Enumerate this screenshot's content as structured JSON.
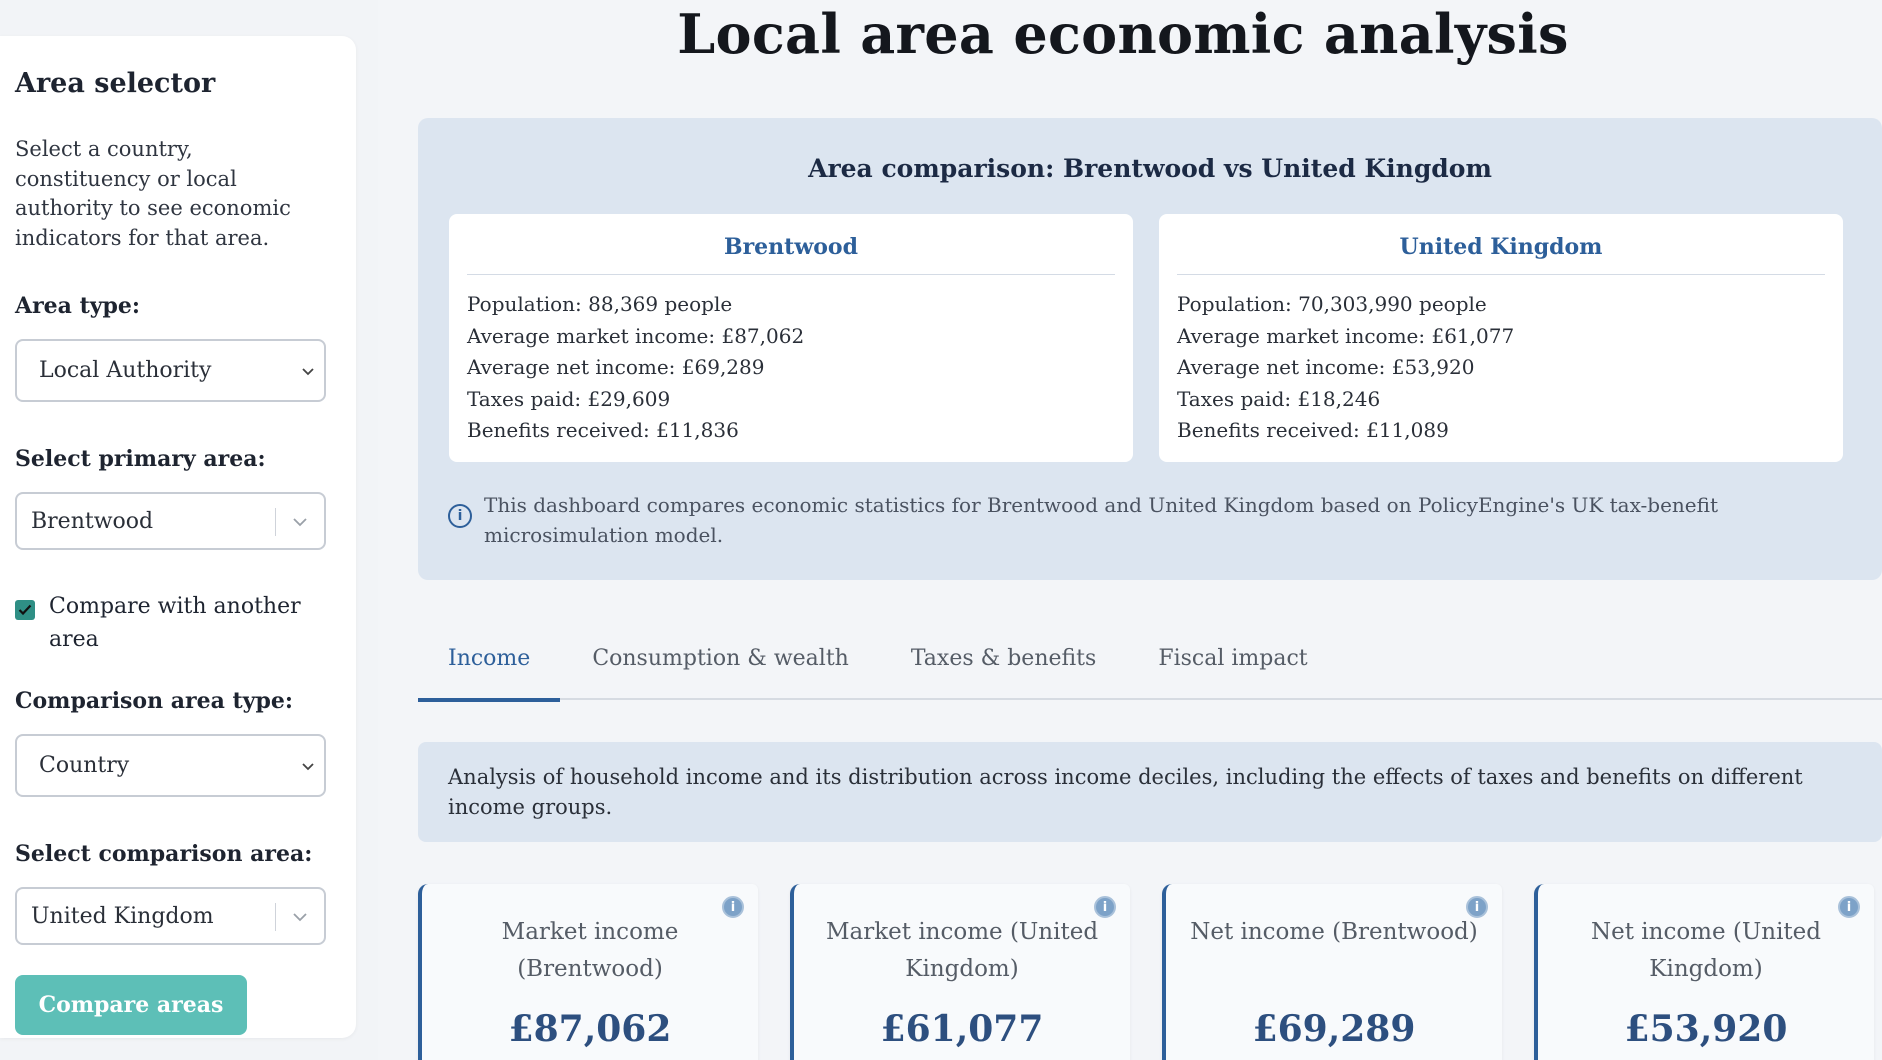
{
  "sidebar": {
    "title": "Area selector",
    "description": "Select a country, constituency or local authority to see economic indicators for that area.",
    "area_type_label": "Area type:",
    "area_type_value": "Local Authority",
    "primary_area_label": "Select primary area:",
    "primary_area_value": "Brentwood",
    "compare_checkbox_label": "Compare with another area",
    "compare_checked": true,
    "comparison_type_label": "Comparison area type:",
    "comparison_type_value": "Country",
    "comparison_area_label": "Select comparison area:",
    "comparison_area_value": "United Kingdom",
    "compare_button": "Compare areas"
  },
  "main": {
    "title": "Local area economic analysis",
    "comparison": {
      "title": "Area comparison: Brentwood vs United Kingdom",
      "areas": [
        {
          "name": "Brentwood",
          "stats": [
            "Population: 88,369 people",
            "Average market income: £87,062",
            "Average net income: £69,289",
            "Taxes paid: £29,609",
            "Benefits received: £11,836"
          ]
        },
        {
          "name": "United Kingdom",
          "stats": [
            "Population: 70,303,990 people",
            "Average market income: £61,077",
            "Average net income: £53,920",
            "Taxes paid: £18,246",
            "Benefits received: £11,089"
          ]
        }
      ],
      "note": "This dashboard compares economic statistics for Brentwood and United Kingdom based on PolicyEngine's UK tax-benefit microsimulation model."
    },
    "tabs": [
      {
        "label": "Income",
        "active": true
      },
      {
        "label": "Consumption & wealth",
        "active": false
      },
      {
        "label": "Taxes & benefits",
        "active": false
      },
      {
        "label": "Fiscal impact",
        "active": false
      }
    ],
    "analysis_text": "Analysis of household income and its distribution across income deciles, including the effects of taxes and benefits on different income groups.",
    "metrics": [
      {
        "label": "Market income (Brentwood)",
        "value": "£87,062"
      },
      {
        "label": "Market income (United Kingdom)",
        "value": "£61,077"
      },
      {
        "label": "Net income (Brentwood)",
        "value": "£69,289"
      },
      {
        "label": "Net income (United Kingdom)",
        "value": "£53,920"
      }
    ]
  },
  "icons": {
    "info": "ⓘ",
    "chevron": "⌄",
    "check": "✓"
  },
  "colors": {
    "accent": "#2d5f9a",
    "teal_button": "#5dbfb7",
    "panel_bg": "#dce5f0"
  }
}
